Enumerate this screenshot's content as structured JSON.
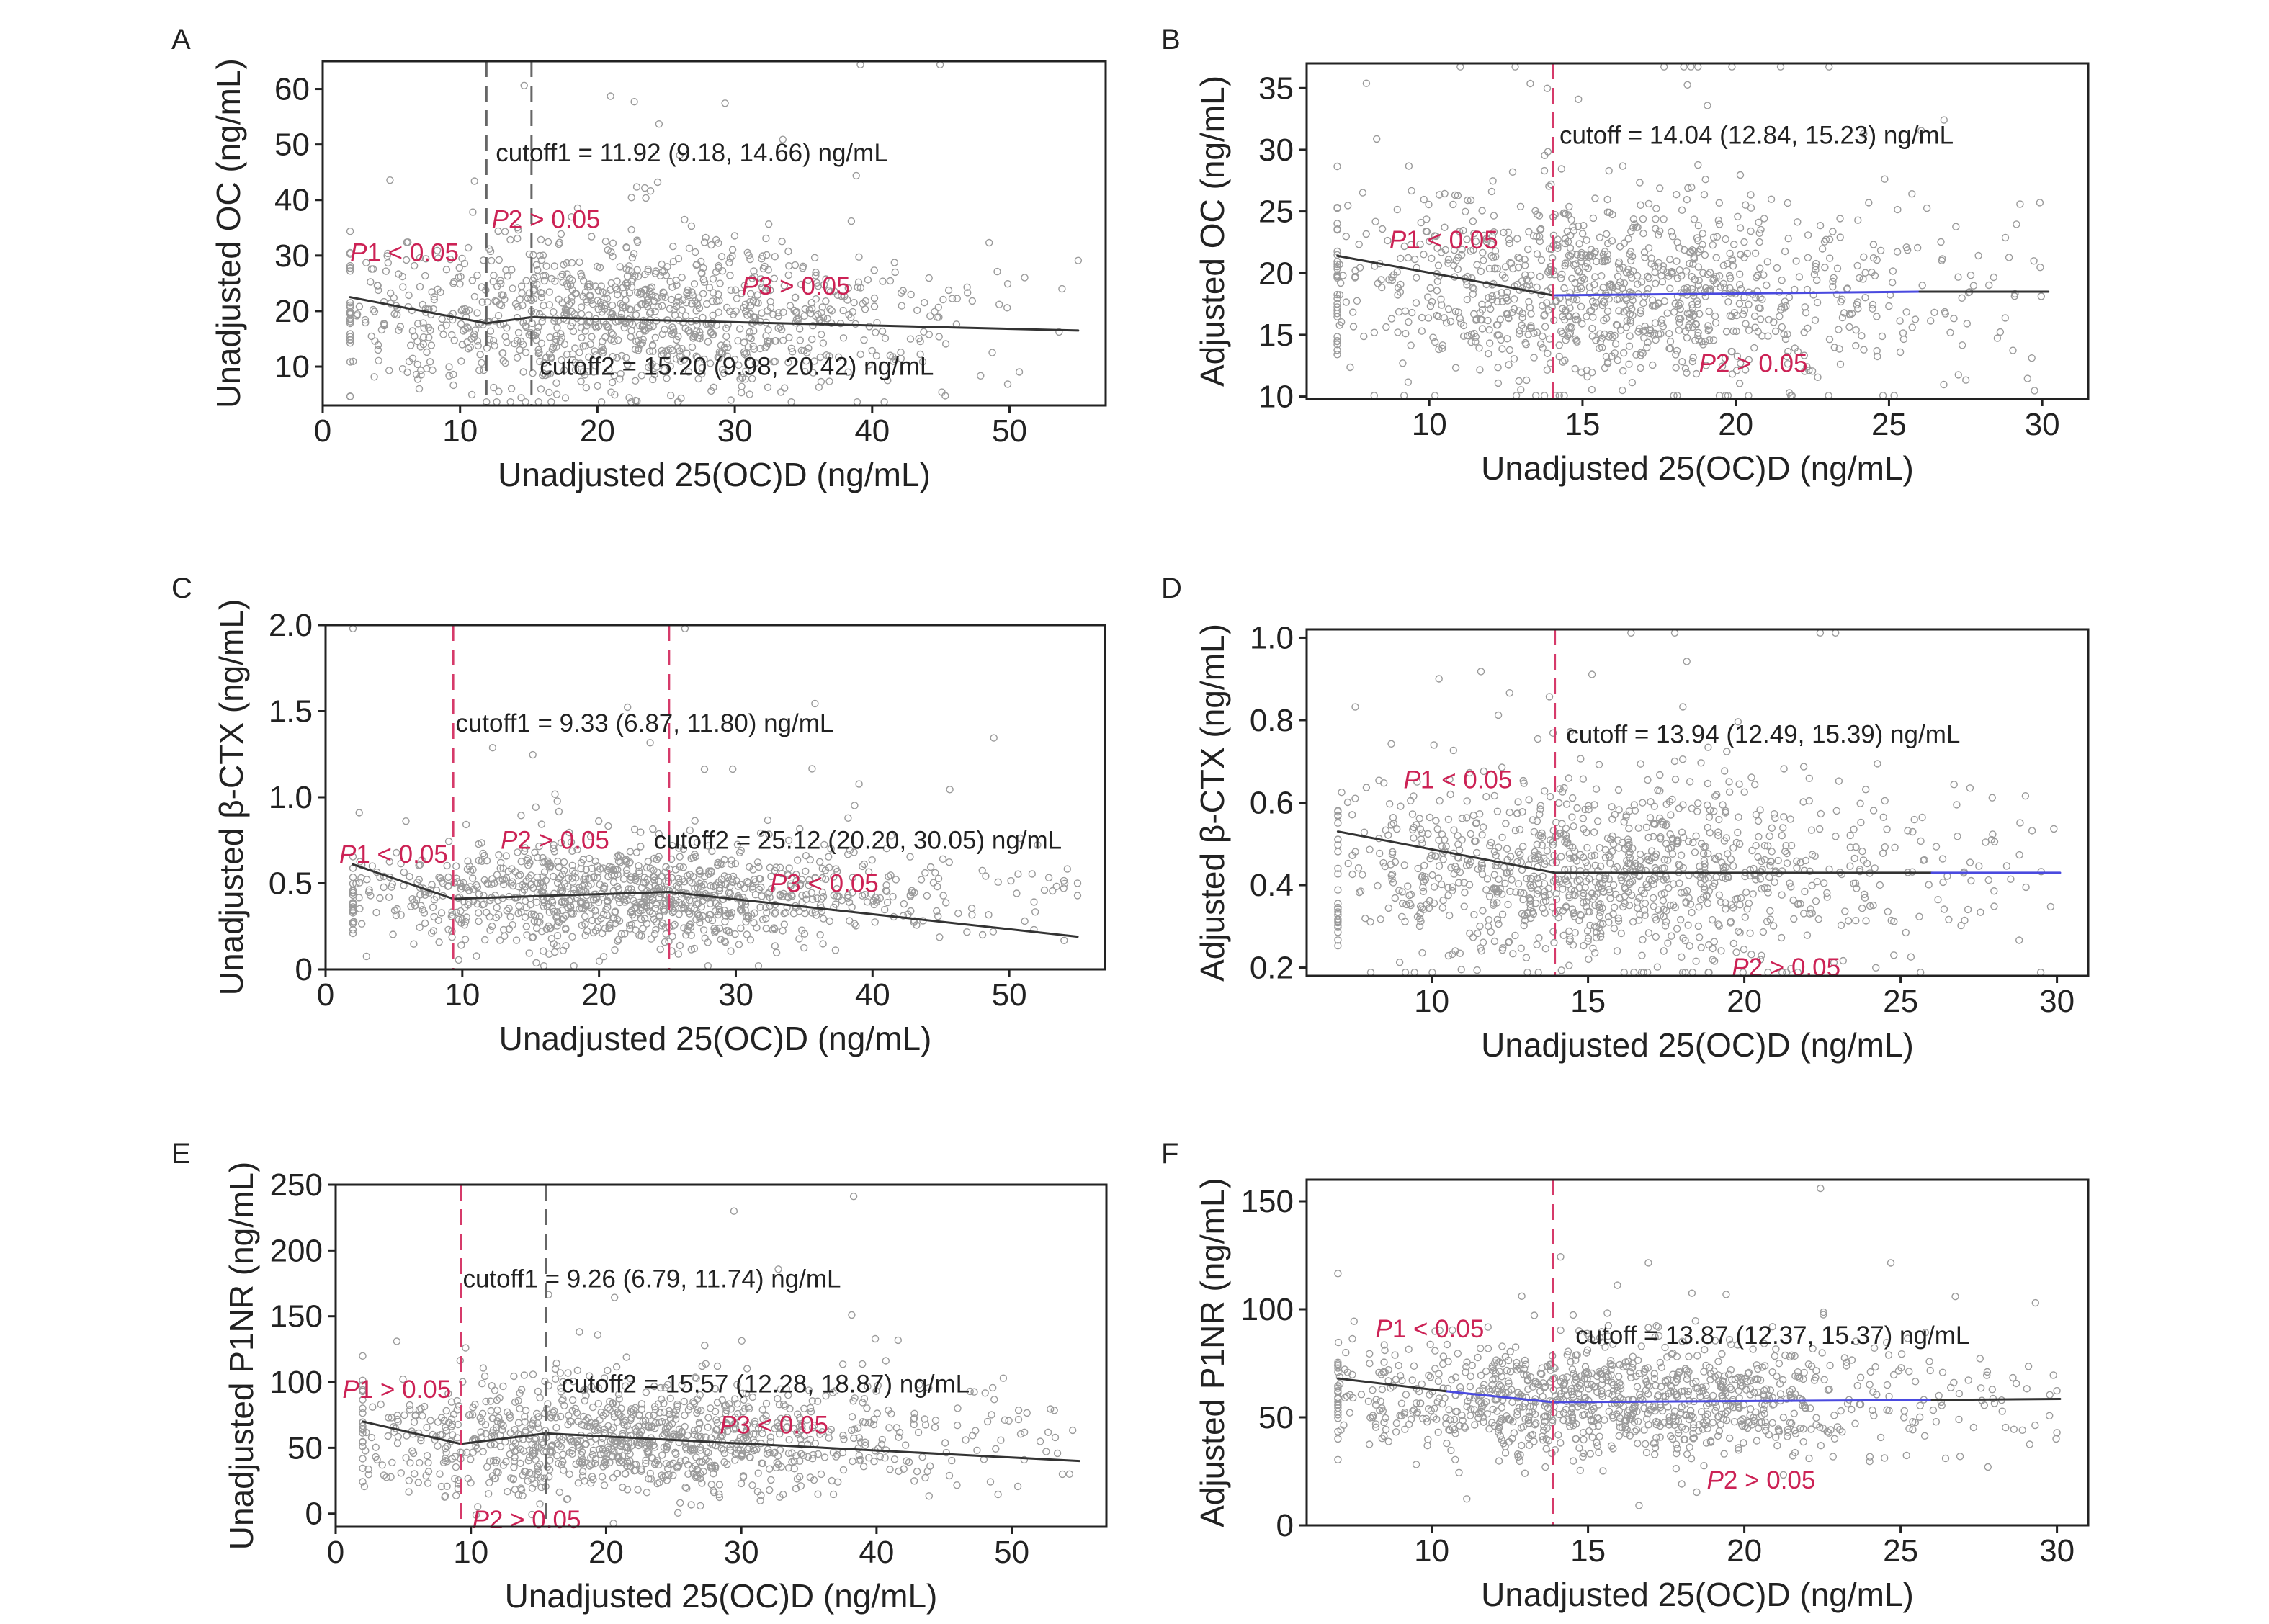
{
  "colors": {
    "axis": "#222222",
    "points": "#9a9a9a",
    "fit_black": "#333333",
    "fit_blue": "#4a4adf",
    "cutoff_red": "#d63a6a",
    "cutoff_gray": "#666666",
    "annotation_red": "#cc2255"
  },
  "chart_data": [
    {
      "panel": "A",
      "type": "scatter",
      "xlabel": "Unadjusted 25(OC)D (ng/mL)",
      "ylabel": "Unadjusted OC (ng/mL)",
      "xlim": [
        0,
        57
      ],
      "ylim": [
        3,
        65
      ],
      "xticks": [
        0,
        10,
        20,
        30,
        40,
        50
      ],
      "yticks": [
        10,
        20,
        30,
        40,
        50,
        60
      ],
      "xtick_labels": [
        "0",
        "10",
        "20",
        "30",
        "40",
        "50"
      ],
      "ytick_labels": [
        "10",
        "20",
        "30",
        "40",
        "50",
        "60"
      ],
      "points_summary": {
        "n": 1100,
        "x_range": [
          2,
          55
        ],
        "y_center": 19,
        "y_spread": 7
      },
      "fit_segments": [
        {
          "x": [
            2,
            11.92
          ],
          "y": [
            22.5,
            17.8
          ],
          "color": "black"
        },
        {
          "x": [
            11.92,
            15.2
          ],
          "y": [
            17.8,
            18.9
          ],
          "color": "black"
        },
        {
          "x": [
            15.2,
            55
          ],
          "y": [
            18.9,
            16.5
          ],
          "color": "black"
        }
      ],
      "cutoff_lines": [
        {
          "x": 11.92,
          "color": "gray"
        },
        {
          "x": 15.2,
          "color": "gray"
        }
      ],
      "annotations": [
        {
          "text": "cutoff1 = 11.92 (9.18, 14.66) ng/mL",
          "x": 12.6,
          "y": 47,
          "color": "black"
        },
        {
          "text": "cutoff2 = 15.20 (9.98, 20.42) ng/mL",
          "x": 15.8,
          "y": 8.5,
          "color": "black"
        },
        {
          "p": "P",
          "text": "1 < 0.05",
          "x": 2,
          "y": 29,
          "color": "red"
        },
        {
          "p": "P",
          "text": "2 > 0.05",
          "x": 12.3,
          "y": 35,
          "color": "red"
        },
        {
          "p": "P",
          "text": "3 > 0.05",
          "x": 30.5,
          "y": 23,
          "color": "red"
        }
      ]
    },
    {
      "panel": "B",
      "type": "scatter",
      "xlabel": "Unadjusted 25(OC)D (ng/mL)",
      "ylabel": "Adjusted OC (ng/mL)",
      "xlim": [
        6,
        31.5
      ],
      "ylim": [
        9.8,
        37
      ],
      "xticks": [
        10,
        15,
        20,
        25,
        30
      ],
      "yticks": [
        10,
        15,
        20,
        25,
        30,
        35
      ],
      "xtick_labels": [
        "10",
        "15",
        "20",
        "25",
        "30"
      ],
      "ytick_labels": [
        "10",
        "15",
        "20",
        "25",
        "30",
        "35"
      ],
      "points_summary": {
        "n": 1100,
        "x_range": [
          7,
          30
        ],
        "y_center": 18.5,
        "y_spread": 4
      },
      "fit_segments": [
        {
          "x": [
            7,
            14.04
          ],
          "y": [
            21.4,
            18.2
          ],
          "color": "black"
        },
        {
          "x": [
            14.04,
            26
          ],
          "y": [
            18.2,
            18.5
          ],
          "color": "blue"
        },
        {
          "x": [
            26,
            30.2
          ],
          "y": [
            18.5,
            18.5
          ],
          "color": "black"
        }
      ],
      "cutoff_lines": [
        {
          "x": 14.04,
          "color": "red"
        }
      ],
      "annotations": [
        {
          "text": "cutoff = 14.04 (12.84, 15.23) ng/mL",
          "x": 14.25,
          "y": 30.5,
          "color": "black"
        },
        {
          "p": "P",
          "text": "1 < 0.05",
          "x": 8.7,
          "y": 22,
          "color": "red"
        },
        {
          "p": "P",
          "text": "2 > 0.05",
          "x": 18.8,
          "y": 12,
          "color": "red"
        }
      ]
    },
    {
      "panel": "C",
      "type": "scatter",
      "xlabel": "Unadjusted 25(OC)D (ng/mL)",
      "ylabel": "Unadjusted β-CTX (ng/mL)",
      "xlim": [
        0,
        57
      ],
      "ylim": [
        0,
        2.0
      ],
      "xticks": [
        0,
        10,
        20,
        30,
        40,
        50
      ],
      "yticks": [
        0,
        0.5,
        1.0,
        1.5,
        2.0
      ],
      "xtick_labels": [
        "0",
        "10",
        "20",
        "30",
        "40",
        "50"
      ],
      "ytick_labels": [
        "0",
        "0.5",
        "1.0",
        "1.5",
        "2.0"
      ],
      "points_summary": {
        "n": 1100,
        "x_range": [
          2,
          55
        ],
        "y_center": 0.42,
        "y_spread": 0.15
      },
      "fit_segments": [
        {
          "x": [
            2,
            9.33
          ],
          "y": [
            0.61,
            0.41
          ],
          "color": "black"
        },
        {
          "x": [
            9.33,
            25.12
          ],
          "y": [
            0.41,
            0.45
          ],
          "color": "black"
        },
        {
          "x": [
            25.12,
            55
          ],
          "y": [
            0.45,
            0.19
          ],
          "color": "black"
        }
      ],
      "cutoff_lines": [
        {
          "x": 9.33,
          "color": "red"
        },
        {
          "x": 25.12,
          "color": "red"
        }
      ],
      "annotations": [
        {
          "text": "cutoff1 = 9.33 (6.87, 11.80) ng/mL",
          "x": 9.5,
          "y": 1.38,
          "color": "black"
        },
        {
          "text": "cutoff2 = 25.12 (20.20, 30.05) ng/mL",
          "x": 24,
          "y": 0.7,
          "color": "black"
        },
        {
          "p": "P",
          "text": "1 < 0.05",
          "x": 1,
          "y": 0.62,
          "color": "red"
        },
        {
          "p": "P",
          "text": "2 > 0.05",
          "x": 12.8,
          "y": 0.7,
          "color": "red"
        },
        {
          "p": "P",
          "text": "3 < 0.05",
          "x": 32.5,
          "y": 0.45,
          "color": "red"
        }
      ]
    },
    {
      "panel": "D",
      "type": "scatter",
      "xlabel": "Unadjusted 25(OC)D (ng/mL)",
      "ylabel": "Adjusted β-CTX (ng/mL)",
      "xlim": [
        6,
        31
      ],
      "ylim": [
        0.18,
        1.02
      ],
      "xticks": [
        10,
        15,
        20,
        25,
        30
      ],
      "yticks": [
        0.2,
        0.4,
        0.6,
        0.8,
        1.0
      ],
      "xtick_labels": [
        "10",
        "15",
        "20",
        "25",
        "30"
      ],
      "ytick_labels": [
        "0.2",
        "0.4",
        "0.6",
        "0.8",
        "1.0"
      ],
      "points_summary": {
        "n": 1100,
        "x_range": [
          7,
          30
        ],
        "y_center": 0.43,
        "y_spread": 0.12
      },
      "fit_segments": [
        {
          "x": [
            7,
            13.94
          ],
          "y": [
            0.53,
            0.43
          ],
          "color": "black"
        },
        {
          "x": [
            13.94,
            26
          ],
          "y": [
            0.43,
            0.43
          ],
          "color": "black"
        },
        {
          "x": [
            26,
            30.1
          ],
          "y": [
            0.43,
            0.43
          ],
          "color": "blue"
        }
      ],
      "cutoff_lines": [
        {
          "x": 13.94,
          "color": "red"
        }
      ],
      "annotations": [
        {
          "text": "cutoff = 13.94 (12.49, 15.39) ng/mL",
          "x": 14.3,
          "y": 0.745,
          "color": "black"
        },
        {
          "p": "P",
          "text": "1 < 0.05",
          "x": 9.1,
          "y": 0.635,
          "color": "red"
        },
        {
          "p": "P",
          "text": "2 > 0.05",
          "x": 19.6,
          "y": 0.18,
          "color": "red"
        }
      ]
    },
    {
      "panel": "E",
      "type": "scatter",
      "xlabel": "Unadjusted 25(OC)D (ng/mL)",
      "ylabel": "Unadjusted P1NR (ng/mL)",
      "xlim": [
        0,
        57
      ],
      "ylim": [
        -10,
        250
      ],
      "xticks": [
        0,
        10,
        20,
        30,
        40,
        50
      ],
      "yticks": [
        0,
        50,
        100,
        150,
        200,
        250
      ],
      "xtick_labels": [
        "0",
        "10",
        "20",
        "30",
        "40",
        "50"
      ],
      "ytick_labels": [
        "0",
        "50",
        "100",
        "150",
        "200",
        "250"
      ],
      "points_summary": {
        "n": 1100,
        "x_range": [
          2,
          55
        ],
        "y_center": 58,
        "y_spread": 22
      },
      "fit_segments": [
        {
          "x": [
            2,
            9.26
          ],
          "y": [
            70,
            53
          ],
          "color": "black"
        },
        {
          "x": [
            9.26,
            15.57
          ],
          "y": [
            53,
            61
          ],
          "color": "black"
        },
        {
          "x": [
            15.57,
            55
          ],
          "y": [
            61,
            40
          ],
          "color": "black"
        }
      ],
      "cutoff_lines": [
        {
          "x": 9.26,
          "color": "red"
        },
        {
          "x": 15.57,
          "color": "gray"
        }
      ],
      "annotations": [
        {
          "text": "cutoff1 = 9.26 (6.79, 11.74) ng/mL",
          "x": 9.4,
          "y": 172,
          "color": "black"
        },
        {
          "text": "cutoff2 = 15.57 (12.28, 18.87) ng/mL",
          "x": 16.7,
          "y": 92,
          "color": "black"
        },
        {
          "p": "P",
          "text": "1 > 0.05",
          "x": 0.5,
          "y": 88,
          "color": "red"
        },
        {
          "p": "P",
          "text": "2 > 0.05",
          "x": 10.1,
          "y": -11,
          "color": "red"
        },
        {
          "p": "P",
          "text": "3 < 0.05",
          "x": 28.4,
          "y": 61,
          "color": "red"
        }
      ]
    },
    {
      "panel": "F",
      "type": "scatter",
      "xlabel": "Unadjusted 25(OC)D (ng/mL)",
      "ylabel": "Adjusted P1NR (ng/mL)",
      "xlim": [
        6,
        31
      ],
      "ylim": [
        0,
        160
      ],
      "xticks": [
        10,
        15,
        20,
        25,
        30
      ],
      "yticks": [
        0,
        50,
        100,
        150
      ],
      "xtick_labels": [
        "10",
        "15",
        "20",
        "25",
        "30"
      ],
      "ytick_labels": [
        "0",
        "50",
        "100",
        "150"
      ],
      "points_summary": {
        "n": 1100,
        "x_range": [
          7,
          30
        ],
        "y_center": 58,
        "y_spread": 14
      },
      "fit_segments": [
        {
          "x": [
            7,
            10.5
          ],
          "y": [
            68,
            62
          ],
          "color": "black"
        },
        {
          "x": [
            10.5,
            13.87
          ],
          "y": [
            62,
            57
          ],
          "color": "blue"
        },
        {
          "x": [
            13.87,
            26
          ],
          "y": [
            57,
            58
          ],
          "color": "blue"
        },
        {
          "x": [
            26,
            30.1
          ],
          "y": [
            58,
            58.5
          ],
          "color": "black"
        }
      ],
      "cutoff_lines": [
        {
          "x": 13.87,
          "color": "red"
        }
      ],
      "annotations": [
        {
          "text": "cutoff = 13.87 (12.37, 15.37) ng/mL",
          "x": 14.6,
          "y": 84,
          "color": "black"
        },
        {
          "p": "P",
          "text": "1 < 0.05",
          "x": 8.2,
          "y": 87,
          "color": "red"
        },
        {
          "p": "P",
          "text": "2 > 0.05",
          "x": 18.8,
          "y": 17,
          "color": "red"
        }
      ]
    }
  ]
}
